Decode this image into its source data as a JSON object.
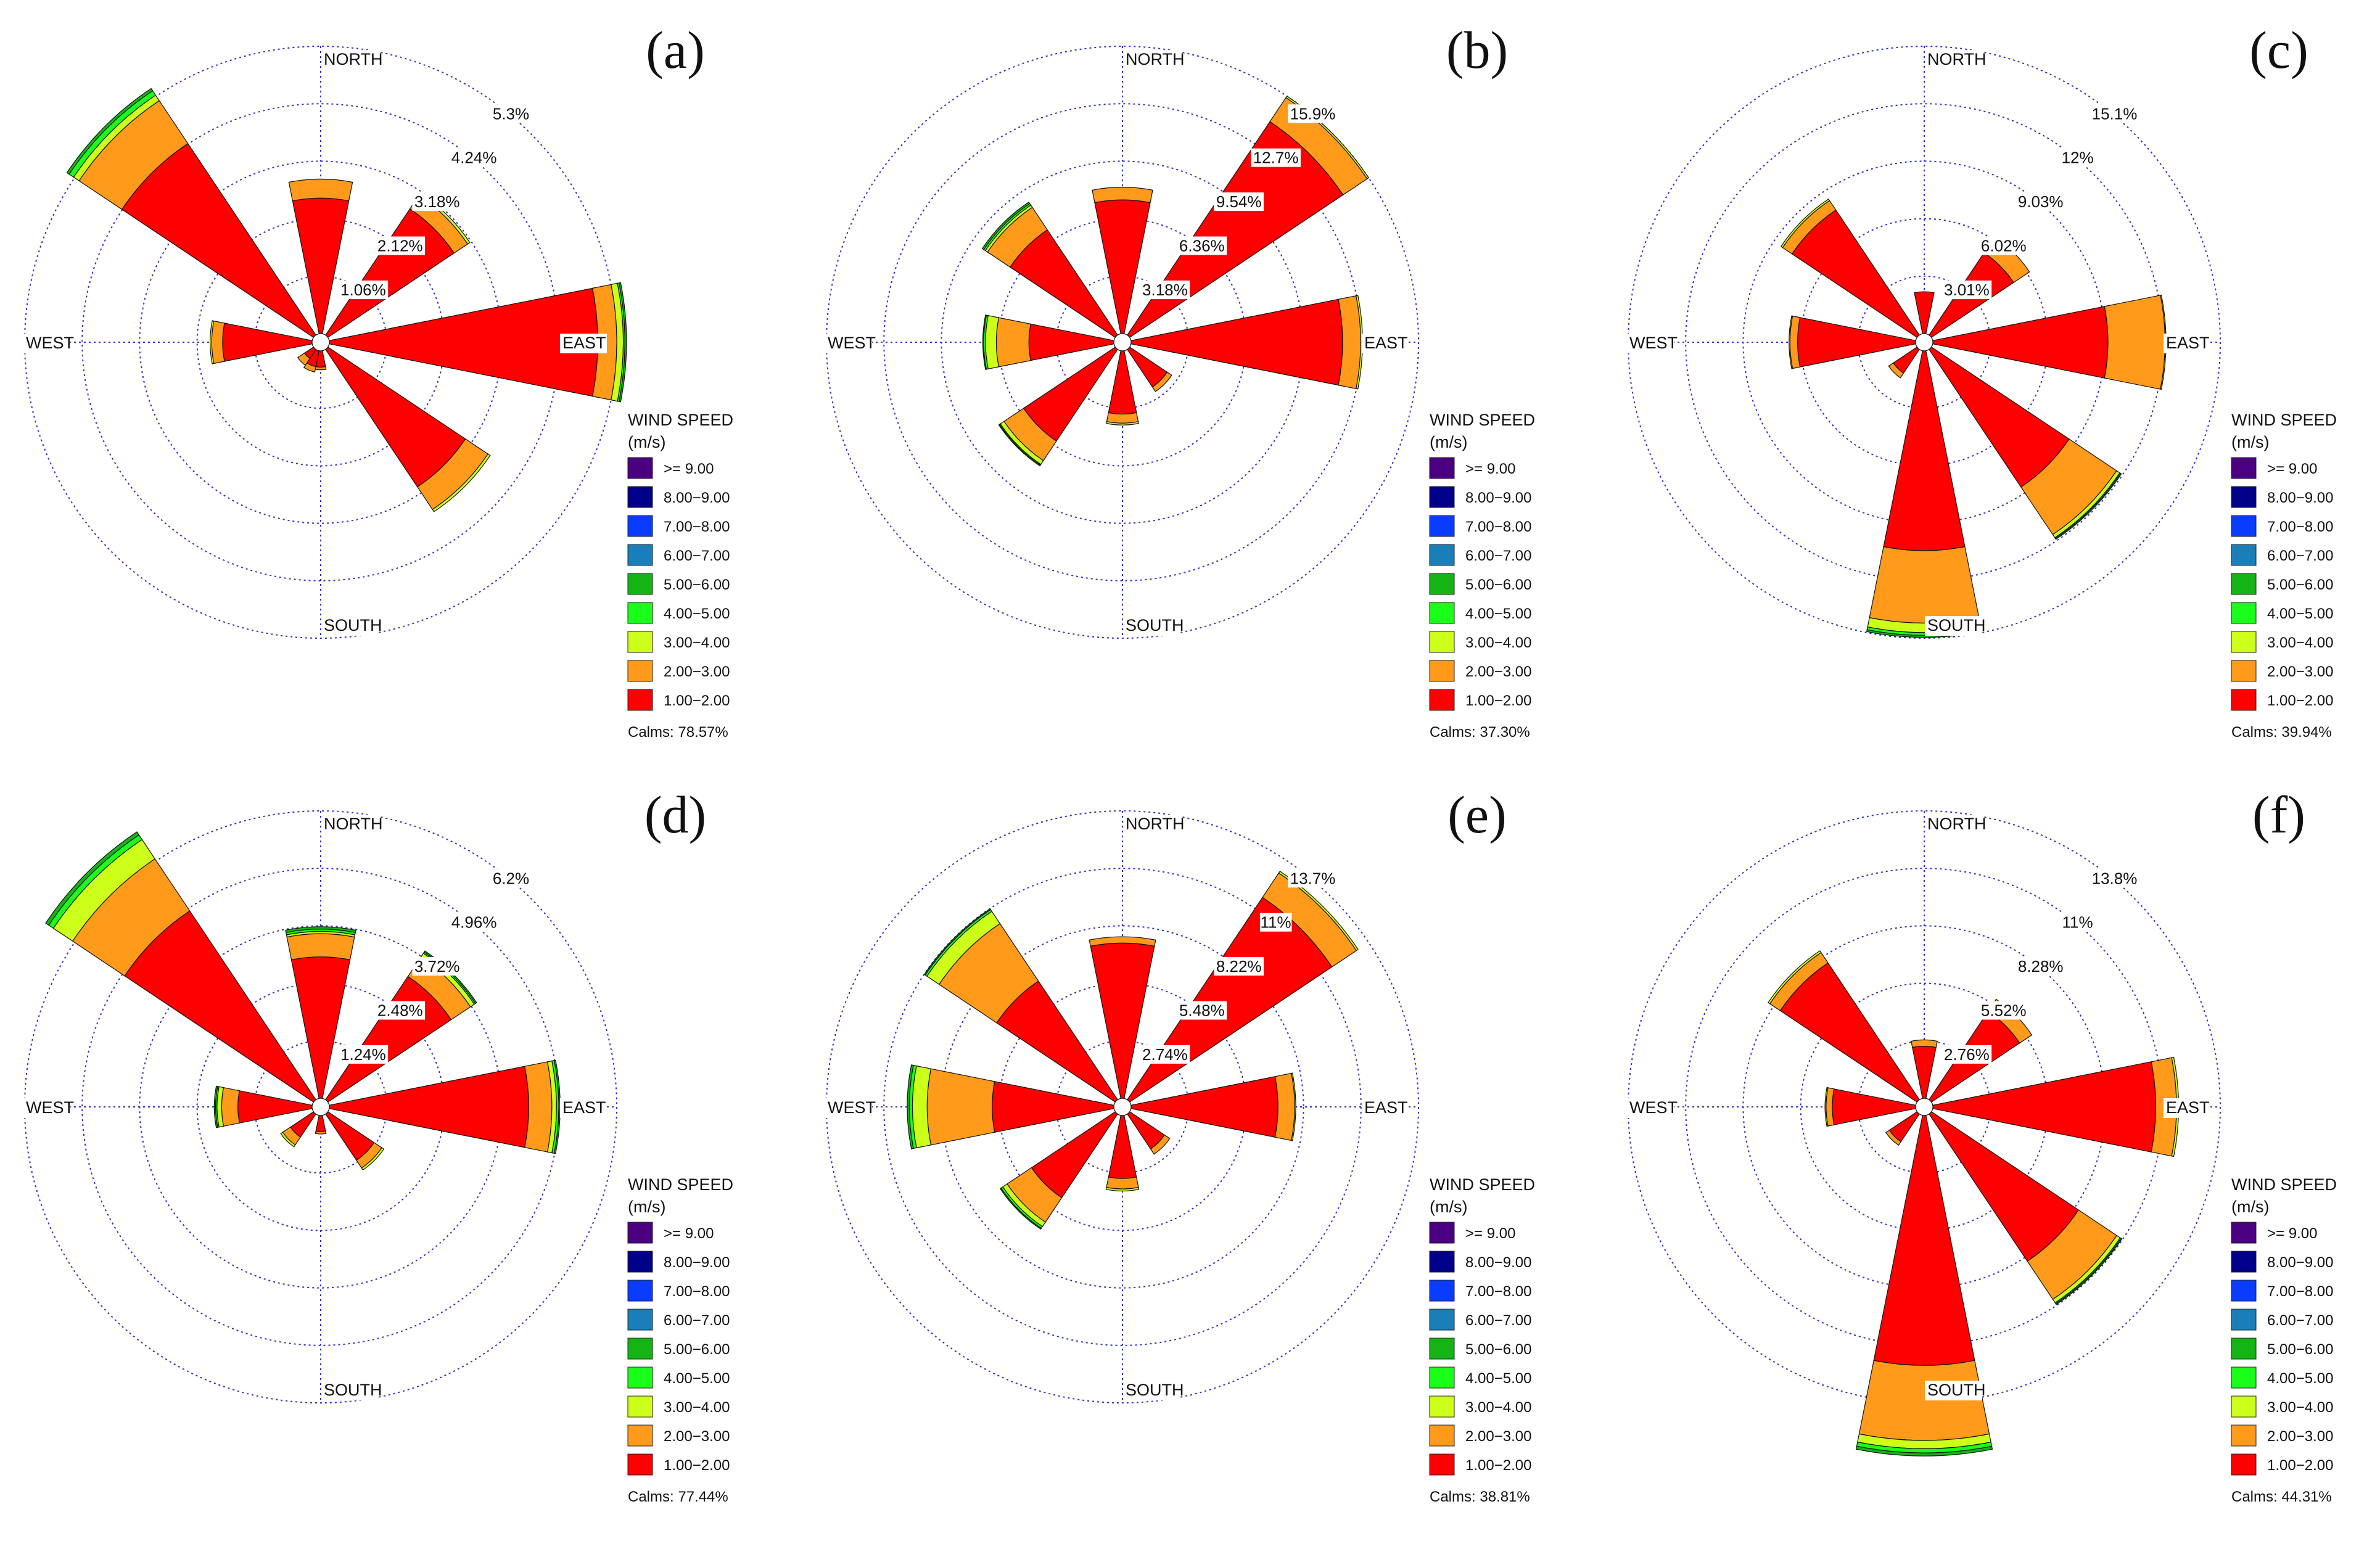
{
  "chart_data": [
    {
      "type": "windrose",
      "panel_label": "(a)",
      "directions": [
        "N",
        "NNE",
        "NE",
        "ENE",
        "E",
        "ESE",
        "SE",
        "SSE",
        "S",
        "SSW",
        "SW",
        "WSW",
        "W",
        "WNW",
        "NW",
        "NNW"
      ],
      "compass_labels": {
        "north": "NORTH",
        "east": "EAST",
        "south": "SOUTH",
        "west": "WEST"
      },
      "rings": [
        {
          "value": 1.06,
          "label": "1.06%"
        },
        {
          "value": 2.12,
          "label": "2.12%"
        },
        {
          "value": 3.18,
          "label": "3.18%"
        },
        {
          "value": 4.24,
          "label": "4.24%"
        },
        {
          "value": 5.3,
          "label": "5.3%"
        }
      ],
      "series": [
        {
          "name": "1.00−2.00",
          "values": [
            2.5,
            0,
            2.8,
            0,
            4.95,
            0,
            3.05,
            0,
            0.3,
            0.3,
            0.2,
            0,
            1.65,
            0,
            4.25,
            0
          ]
        },
        {
          "name": "2.00−3.00",
          "values": [
            0.35,
            0,
            0.3,
            0,
            0.35,
            0,
            0.5,
            0,
            0.05,
            0.1,
            0.15,
            0,
            0.2,
            0,
            0.95,
            0
          ]
        },
        {
          "name": "3.00−4.00",
          "values": [
            0,
            0,
            0.05,
            0,
            0.12,
            0,
            0.05,
            0,
            0,
            0,
            0,
            0,
            0.03,
            0,
            0.12,
            0
          ]
        },
        {
          "name": "4.00−5.00",
          "values": [
            0,
            0,
            0,
            0,
            0.03,
            0,
            0,
            0,
            0,
            0,
            0,
            0,
            0,
            0,
            0.1,
            0
          ]
        },
        {
          "name": "5.00−6.00",
          "values": [
            0,
            0,
            0,
            0,
            0.03,
            0,
            0,
            0,
            0,
            0,
            0,
            0,
            0,
            0,
            0.05,
            0
          ]
        }
      ],
      "legend_title": "WIND SPEED",
      "legend_unit": "(m/s)",
      "calms": "Calms: 78.57%"
    },
    {
      "type": "windrose",
      "panel_label": "(b)",
      "directions": [
        "N",
        "NNE",
        "NE",
        "ENE",
        "E",
        "ESE",
        "SE",
        "SSE",
        "S",
        "SSW",
        "SW",
        "WSW",
        "W",
        "WNW",
        "NW",
        "NNW"
      ],
      "compass_labels": {
        "north": "NORTH",
        "east": "EAST",
        "south": "SOUTH",
        "west": "WEST"
      },
      "rings": [
        {
          "value": 3.18,
          "label": "3.18%"
        },
        {
          "value": 6.36,
          "label": "6.36%"
        },
        {
          "value": 9.54,
          "label": "9.54%"
        },
        {
          "value": 12.7,
          "label": "12.7%"
        },
        {
          "value": 15.9,
          "label": "15.9%"
        }
      ],
      "series": [
        {
          "name": "1.00−2.00",
          "values": [
            7.4,
            0,
            14.2,
            0,
            11.7,
            0,
            2.5,
            0,
            3.5,
            0,
            6.1,
            0,
            4.7,
            0,
            7.0,
            0
          ]
        },
        {
          "name": "2.00−3.00",
          "values": [
            0.7,
            0,
            1.6,
            0,
            1.0,
            0,
            0.3,
            0,
            0.5,
            0,
            1.3,
            0,
            1.8,
            0,
            1.5,
            0
          ]
        },
        {
          "name": "3.00−4.00",
          "values": [
            0,
            0,
            0.1,
            0,
            0.1,
            0,
            0,
            0,
            0.1,
            0,
            0.25,
            0,
            0.6,
            0,
            0.15,
            0
          ]
        },
        {
          "name": "4.00−5.00",
          "values": [
            0,
            0,
            0,
            0,
            0,
            0,
            0,
            0,
            0,
            0,
            0.05,
            0,
            0.1,
            0,
            0.1,
            0
          ]
        },
        {
          "name": "5.00−6.00",
          "values": [
            0,
            0,
            0,
            0,
            0,
            0,
            0,
            0,
            0,
            0,
            0.05,
            0,
            0.05,
            0,
            0.1,
            0
          ]
        }
      ],
      "legend_title": "WIND SPEED",
      "legend_unit": "(m/s)",
      "calms": "Calms: 37.30%"
    },
    {
      "type": "windrose",
      "panel_label": "(c)",
      "directions": [
        "N",
        "NNE",
        "NE",
        "ENE",
        "E",
        "ESE",
        "SE",
        "SSE",
        "S",
        "SSW",
        "SW",
        "WSW",
        "W",
        "WNW",
        "NW",
        "NNW"
      ],
      "compass_labels": {
        "north": "NORTH",
        "east": "EAST",
        "south": "SOUTH",
        "west": "WEST"
      },
      "rings": [
        {
          "value": 3.01,
          "label": "3.01%"
        },
        {
          "value": 6.02,
          "label": "6.02%"
        },
        {
          "value": 9.03,
          "label": "9.03%"
        },
        {
          "value": 12.0,
          "label": "12%"
        },
        {
          "value": 15.1,
          "label": "15.1%"
        }
      ],
      "series": [
        {
          "name": "1.00−2.00",
          "values": [
            2.2,
            0,
            5.2,
            0,
            9.2,
            0,
            8.7,
            0,
            10.5,
            0,
            1.5,
            0,
            6.2,
            0,
            7.9,
            0
          ]
        },
        {
          "name": "2.00−3.00",
          "values": [
            0,
            0,
            1.0,
            0,
            3.0,
            0,
            3.0,
            0,
            3.8,
            0,
            0.3,
            0,
            0.4,
            0,
            0.6,
            0
          ]
        },
        {
          "name": "3.00−4.00",
          "values": [
            0,
            0,
            0,
            0,
            0.05,
            0,
            0.2,
            0,
            0.5,
            0,
            0,
            0,
            0.05,
            0,
            0.1,
            0
          ]
        },
        {
          "name": "4.00−5.00",
          "values": [
            0,
            0,
            0,
            0,
            0,
            0,
            0.05,
            0,
            0.15,
            0,
            0,
            0,
            0,
            0,
            0,
            0
          ]
        },
        {
          "name": "5.00−6.00",
          "values": [
            0,
            0,
            0,
            0,
            0,
            0,
            0.05,
            0,
            0.1,
            0,
            0,
            0,
            0,
            0,
            0,
            0
          ]
        }
      ],
      "legend_title": "WIND SPEED",
      "legend_unit": "(m/s)",
      "calms": "Calms: 39.94%"
    },
    {
      "type": "windrose",
      "panel_label": "(d)",
      "directions": [
        "N",
        "NNE",
        "NE",
        "ENE",
        "E",
        "ESE",
        "SE",
        "SSE",
        "S",
        "SSW",
        "SW",
        "WSW",
        "W",
        "WNW",
        "NW",
        "NNW"
      ],
      "compass_labels": {
        "north": "NORTH",
        "east": "EAST",
        "south": "SOUTH",
        "west": "WEST"
      },
      "rings": [
        {
          "value": 1.24,
          "label": "1.24%"
        },
        {
          "value": 2.48,
          "label": "2.48%"
        },
        {
          "value": 3.72,
          "label": "3.72%"
        },
        {
          "value": 4.96,
          "label": "4.96%"
        },
        {
          "value": 6.2,
          "label": "6.2%"
        }
      ],
      "series": [
        {
          "name": "1.00−2.00",
          "values": [
            3.05,
            0,
            3.2,
            0,
            4.3,
            0,
            1.2,
            0,
            0.35,
            0,
            0.6,
            0,
            1.6,
            0,
            4.9,
            0
          ]
        },
        {
          "name": "2.00−3.00",
          "values": [
            0.5,
            0,
            0.5,
            0,
            0.5,
            0,
            0.2,
            0,
            0.05,
            0,
            0.2,
            0,
            0.35,
            0,
            1.35,
            0
          ]
        },
        {
          "name": "3.00−4.00",
          "values": [
            0.05,
            0,
            0.1,
            0,
            0.1,
            0,
            0.05,
            0,
            0,
            0,
            0.05,
            0,
            0.1,
            0,
            0.5,
            0
          ]
        },
        {
          "name": "4.00−5.00",
          "values": [
            0.05,
            0,
            0.03,
            0,
            0.05,
            0,
            0,
            0,
            0,
            0,
            0,
            0,
            0.03,
            0,
            0.12,
            0
          ]
        },
        {
          "name": "5.00−6.00",
          "values": [
            0.05,
            0,
            0.03,
            0,
            0.03,
            0,
            0,
            0,
            0,
            0,
            0,
            0,
            0.03,
            0,
            0.08,
            0
          ]
        }
      ],
      "legend_title": "WIND SPEED",
      "legend_unit": "(m/s)",
      "calms": "Calms: 77.44%"
    },
    {
      "type": "windrose",
      "panel_label": "(e)",
      "directions": [
        "N",
        "NNE",
        "NE",
        "ENE",
        "E",
        "ESE",
        "SE",
        "SSE",
        "S",
        "SSW",
        "SW",
        "WSW",
        "W",
        "WNW",
        "NW",
        "NNW"
      ],
      "compass_labels": {
        "north": "NORTH",
        "east": "EAST",
        "south": "SOUTH",
        "west": "WEST"
      },
      "rings": [
        {
          "value": 2.74,
          "label": "2.74%"
        },
        {
          "value": 5.48,
          "label": "5.48%"
        },
        {
          "value": 8.22,
          "label": "8.22%"
        },
        {
          "value": 11.0,
          "label": "11%"
        },
        {
          "value": 13.7,
          "label": "13.7%"
        }
      ],
      "series": [
        {
          "name": "1.00−2.00",
          "values": [
            7.4,
            0,
            11.6,
            0,
            7.0,
            0,
            2.0,
            0,
            3.0,
            0,
            4.8,
            0,
            5.8,
            0,
            6.8,
            0
          ]
        },
        {
          "name": "2.00−3.00",
          "values": [
            0.3,
            0,
            1.4,
            0,
            0.8,
            0,
            0.3,
            0,
            0.5,
            0,
            1.4,
            0,
            3.1,
            0,
            3.3,
            0
          ]
        },
        {
          "name": "3.00−4.00",
          "values": [
            0,
            0,
            0.1,
            0,
            0.05,
            0,
            0,
            0,
            0.1,
            0,
            0.25,
            0,
            0.7,
            0,
            0.7,
            0
          ]
        },
        {
          "name": "4.00−5.00",
          "values": [
            0,
            0,
            0,
            0,
            0,
            0,
            0,
            0,
            0,
            0,
            0.1,
            0,
            0.15,
            0,
            0.1,
            0
          ]
        },
        {
          "name": "5.00−6.00",
          "values": [
            0,
            0,
            0,
            0,
            0,
            0,
            0,
            0,
            0,
            0,
            0.05,
            0,
            0.1,
            0,
            0.05,
            0
          ]
        }
      ],
      "legend_title": "WIND SPEED",
      "legend_unit": "(m/s)",
      "calms": "Calms: 38.81%"
    },
    {
      "type": "windrose",
      "panel_label": "(f)",
      "directions": [
        "N",
        "NNE",
        "NE",
        "ENE",
        "E",
        "ESE",
        "SE",
        "SSE",
        "S",
        "SSW",
        "SW",
        "WSW",
        "W",
        "WNW",
        "NW",
        "NNW"
      ],
      "compass_labels": {
        "north": "NORTH",
        "east": "EAST",
        "south": "SOUTH",
        "west": "WEST"
      },
      "rings": [
        {
          "value": 2.76,
          "label": "2.76%"
        },
        {
          "value": 5.52,
          "label": "5.52%"
        },
        {
          "value": 8.28,
          "label": "8.28%"
        },
        {
          "value": 11.0,
          "label": "11%"
        },
        {
          "value": 13.8,
          "label": "13.8%"
        }
      ],
      "series": [
        {
          "name": "1.00−2.00",
          "values": [
            2.5,
            0,
            5.1,
            0,
            10.7,
            0,
            8.5,
            0,
            12.0,
            0,
            1.6,
            0,
            4.0,
            0,
            7.9,
            0
          ]
        },
        {
          "name": "2.00−3.00",
          "values": [
            0.3,
            0,
            0.7,
            0,
            1.0,
            0,
            2.2,
            0,
            3.6,
            0,
            0.2,
            0,
            0.3,
            0,
            0.6,
            0
          ]
        },
        {
          "name": "3.00−4.00",
          "values": [
            0,
            0,
            0,
            0,
            0.1,
            0,
            0.2,
            0,
            0.4,
            0,
            0,
            0,
            0.05,
            0,
            0.1,
            0
          ]
        },
        {
          "name": "4.00−5.00",
          "values": [
            0,
            0,
            0,
            0,
            0,
            0,
            0.05,
            0,
            0.2,
            0,
            0,
            0,
            0,
            0,
            0,
            0
          ]
        },
        {
          "name": "5.00−6.00",
          "values": [
            0,
            0,
            0,
            0,
            0,
            0,
            0.05,
            0,
            0.15,
            0,
            0,
            0,
            0,
            0,
            0,
            0
          ]
        }
      ],
      "legend_title": "WIND SPEED",
      "legend_unit": "(m/s)",
      "calms": "Calms: 44.31%"
    }
  ],
  "legend": {
    "bins": [
      {
        "label": ">= 9.00",
        "color": "#4b0082"
      },
      {
        "label": "8.00−9.00",
        "color": "#00008b"
      },
      {
        "label": "7.00−8.00",
        "color": "#0a3cff"
      },
      {
        "label": "6.00−7.00",
        "color": "#1a7fb8"
      },
      {
        "label": "5.00−6.00",
        "color": "#14b414"
      },
      {
        "label": "4.00−5.00",
        "color": "#1aff1a"
      },
      {
        "label": "3.00−4.00",
        "color": "#ccff1a"
      },
      {
        "label": "2.00−3.00",
        "color": "#ff9a1a"
      },
      {
        "label": "1.00−2.00",
        "color": "#ff0000"
      }
    ],
    "series_colors": [
      "#ff0000",
      "#ff9a1a",
      "#ccff1a",
      "#1aff1a",
      "#14b414"
    ]
  }
}
